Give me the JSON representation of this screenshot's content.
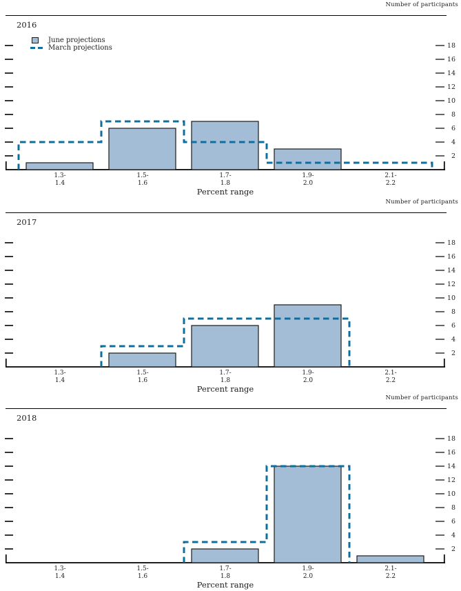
{
  "colors": {
    "june_fill": "#a3bdd7",
    "june_border": "#1a1a1a",
    "march_line": "#0d6f9f",
    "axis": "#000000",
    "text": "#1c1c1c"
  },
  "chart_data": [
    {
      "type": "bar",
      "title": "2016",
      "xlabel": "Percent range",
      "ylabel": "Number of participants",
      "categories": [
        "1.3-1.4",
        "1.5-1.6",
        "1.7-1.8",
        "1.9-2.0",
        "2.1-2.2"
      ],
      "category_labels": [
        [
          "1.3-",
          "1.4"
        ],
        [
          "1.5-",
          "1.6"
        ],
        [
          "1.7-",
          "1.8"
        ],
        [
          "1.9-",
          "2.0"
        ],
        [
          "2.1-",
          "2.2"
        ]
      ],
      "series": [
        {
          "name": "June projections",
          "style": "bar",
          "values": [
            1,
            6,
            7,
            3,
            0
          ]
        },
        {
          "name": "March projections",
          "style": "dashed-step",
          "values": [
            4,
            7,
            4,
            1,
            1
          ]
        }
      ],
      "yticks": [
        2,
        4,
        6,
        8,
        10,
        12,
        14,
        16,
        18
      ],
      "ylim": [
        0,
        20
      ],
      "grid": false,
      "legend_position": "top-left"
    },
    {
      "type": "bar",
      "title": "2017",
      "xlabel": "Percent range",
      "ylabel": "Number of participants",
      "categories": [
        "1.3-1.4",
        "1.5-1.6",
        "1.7-1.8",
        "1.9-2.0",
        "2.1-2.2"
      ],
      "category_labels": [
        [
          "1.3-",
          "1.4"
        ],
        [
          "1.5-",
          "1.6"
        ],
        [
          "1.7-",
          "1.8"
        ],
        [
          "1.9-",
          "2.0"
        ],
        [
          "2.1-",
          "2.2"
        ]
      ],
      "series": [
        {
          "name": "June projections",
          "style": "bar",
          "values": [
            0,
            2,
            6,
            9,
            0
          ]
        },
        {
          "name": "March projections",
          "style": "dashed-step",
          "values": [
            0,
            3,
            7,
            7,
            0
          ]
        }
      ],
      "yticks": [
        2,
        4,
        6,
        8,
        10,
        12,
        14,
        16,
        18
      ],
      "ylim": [
        0,
        20
      ],
      "grid": false,
      "legend_position": "none"
    },
    {
      "type": "bar",
      "title": "2018",
      "xlabel": "Percent range",
      "ylabel": "Number of participants",
      "categories": [
        "1.3-1.4",
        "1.5-1.6",
        "1.7-1.8",
        "1.9-2.0",
        "2.1-2.2"
      ],
      "category_labels": [
        [
          "1.3-",
          "1.4"
        ],
        [
          "1.5-",
          "1.6"
        ],
        [
          "1.7-",
          "1.8"
        ],
        [
          "1.9-",
          "2.0"
        ],
        [
          "2.1-",
          "2.2"
        ]
      ],
      "series": [
        {
          "name": "June projections",
          "style": "bar",
          "values": [
            0,
            0,
            2,
            14,
            1
          ]
        },
        {
          "name": "March projections",
          "style": "dashed-step",
          "values": [
            0,
            0,
            3,
            14,
            0
          ]
        }
      ],
      "yticks": [
        2,
        4,
        6,
        8,
        10,
        12,
        14,
        16,
        18
      ],
      "ylim": [
        0,
        20
      ],
      "grid": false,
      "legend_position": "none"
    }
  ]
}
